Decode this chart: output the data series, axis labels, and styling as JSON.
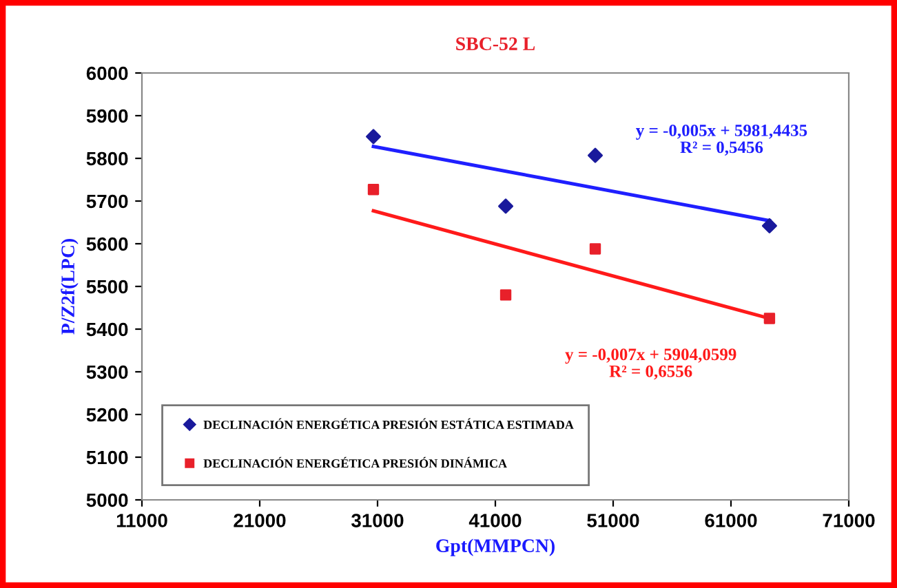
{
  "chart_data": {
    "type": "scatter",
    "title": "SBC-52 L",
    "xlabel": "Gpt(MMPCN)",
    "ylabel": "P/Z2f(LPC)",
    "xlim": [
      11000,
      71000
    ],
    "xticks": [
      11000,
      21000,
      31000,
      41000,
      51000,
      61000,
      71000
    ],
    "ylim": [
      5000,
      6000
    ],
    "yticks": [
      5000,
      5100,
      5200,
      5300,
      5400,
      5500,
      5600,
      5700,
      5800,
      5900,
      6000
    ],
    "grid": false,
    "legend": "bottom left",
    "series": [
      {
        "name": "DECLINACIÓN ENERGÉTICA PRESIÓN ESTÁTICA ESTIMADA",
        "color": "#1a1a9c",
        "marker": "diamond",
        "x": [
          30650,
          41880,
          49480,
          64270
        ],
        "values": [
          5851,
          5688,
          5807,
          5642
        ]
      },
      {
        "name": "DECLINACIÓN ENERGÉTICA PRESIÓN DINÁMICA",
        "color": "#e8202a",
        "marker": "square",
        "x": [
          30650,
          41880,
          49480,
          64270
        ],
        "values": [
          5727,
          5480,
          5588,
          5425
        ]
      },
      {
        "type": "line",
        "color": "#1f1fff",
        "x": [
          30650,
          64270
        ],
        "values": [
          5828,
          5654
        ]
      },
      {
        "type": "line",
        "color": "#ff1a1a",
        "x": [
          30650,
          64270
        ],
        "values": [
          5677,
          5425
        ]
      }
    ],
    "annotations": [
      "y = -0,005x + 5981,4435\nR² = 0,5456",
      "y = -0,007x + 5904,0599\nR² = 0,6556"
    ]
  }
}
